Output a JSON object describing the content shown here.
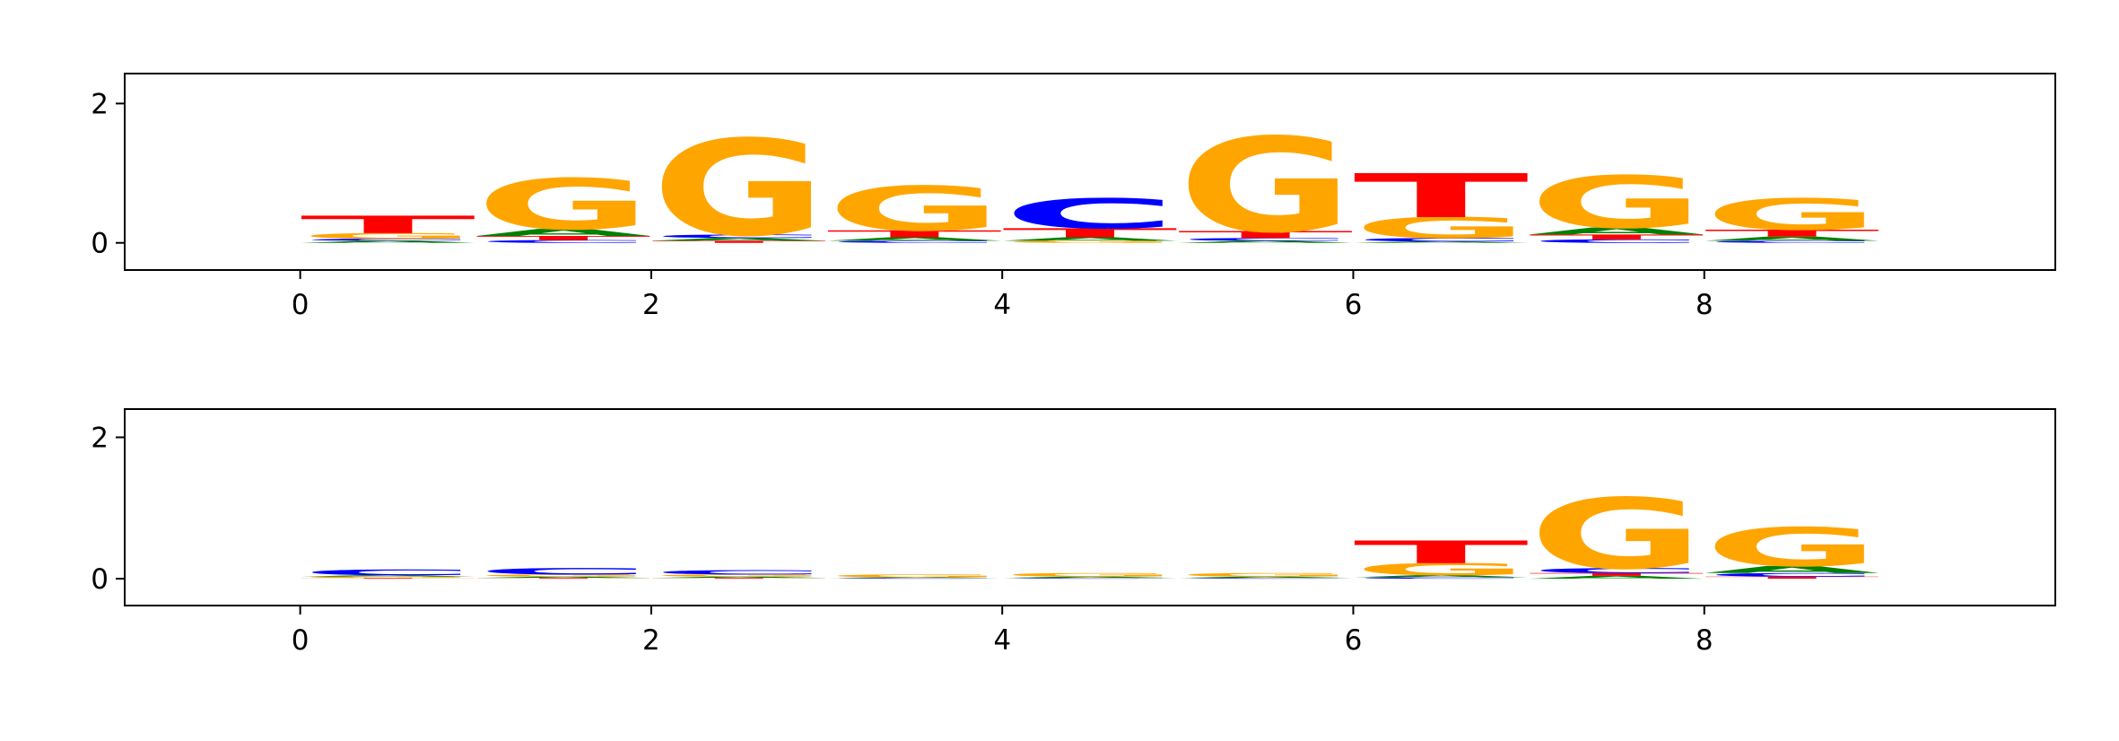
{
  "chart_data": [
    {
      "type": "logo",
      "xlim": [
        -1,
        10
      ],
      "ylim": [
        -0.39,
        2.43
      ],
      "xticks": [
        0,
        2,
        4,
        6,
        8
      ],
      "yticks": [
        0,
        2
      ],
      "colors": {
        "A": "#008000",
        "C": "#0000ff",
        "G": "#ffa500",
        "T": "#ff0000"
      },
      "stacks": [
        {
          "letters": [
            "A",
            "C",
            "G",
            "T"
          ],
          "heights": [
            0.03,
            0.03,
            0.08,
            0.25
          ]
        },
        {
          "letters": [
            "C",
            "T",
            "A",
            "G"
          ],
          "heights": [
            0.04,
            0.06,
            0.1,
            0.73
          ]
        },
        {
          "letters": [
            "T",
            "A",
            "C",
            "G"
          ],
          "heights": [
            0.03,
            0.04,
            0.05,
            1.38
          ]
        },
        {
          "letters": [
            "C",
            "A",
            "T",
            "G"
          ],
          "heights": [
            0.03,
            0.05,
            0.1,
            0.64
          ]
        },
        {
          "letters": [
            "G",
            "A",
            "T",
            "C"
          ],
          "heights": [
            0.03,
            0.05,
            0.13,
            0.43
          ]
        },
        {
          "letters": [
            "A",
            "C",
            "T",
            "G"
          ],
          "heights": [
            0.03,
            0.04,
            0.1,
            1.36
          ]
        },
        {
          "letters": [
            "A",
            "C",
            "G",
            "T"
          ],
          "heights": [
            0.02,
            0.05,
            0.3,
            0.63
          ]
        },
        {
          "letters": [
            "C",
            "T",
            "A",
            "G"
          ],
          "heights": [
            0.05,
            0.07,
            0.1,
            0.75
          ]
        },
        {
          "letters": [
            "C",
            "A",
            "T",
            "G"
          ],
          "heights": [
            0.03,
            0.06,
            0.1,
            0.45
          ]
        }
      ]
    },
    {
      "type": "logo",
      "xlim": [
        -1,
        10
      ],
      "ylim": [
        -0.38,
        2.4
      ],
      "xticks": [
        0,
        2,
        4,
        6,
        8
      ],
      "yticks": [
        0,
        2
      ],
      "colors": {
        "A": "#008000",
        "C": "#0000ff",
        "G": "#ffa500",
        "T": "#ff0000"
      },
      "stacks": [
        {
          "letters": [
            "T",
            "G",
            "A",
            "C"
          ],
          "heights": [
            0.01,
            0.02,
            0.02,
            0.08
          ]
        },
        {
          "letters": [
            "T",
            "A",
            "G",
            "C"
          ],
          "heights": [
            0.01,
            0.02,
            0.03,
            0.09
          ]
        },
        {
          "letters": [
            "T",
            "A",
            "G",
            "C"
          ],
          "heights": [
            0.01,
            0.02,
            0.03,
            0.06
          ]
        },
        {
          "letters": [
            "C",
            "A",
            "G"
          ],
          "heights": [
            0.01,
            0.01,
            0.04
          ]
        },
        {
          "letters": [
            "C",
            "A",
            "G"
          ],
          "heights": [
            0.01,
            0.02,
            0.05
          ]
        },
        {
          "letters": [
            "C",
            "A",
            "G"
          ],
          "heights": [
            0.01,
            0.02,
            0.05
          ]
        },
        {
          "letters": [
            "C",
            "A",
            "G",
            "T"
          ],
          "heights": [
            0.02,
            0.03,
            0.17,
            0.32
          ]
        },
        {
          "letters": [
            "A",
            "T",
            "C",
            "G"
          ],
          "heights": [
            0.04,
            0.04,
            0.07,
            1.0
          ]
        },
        {
          "letters": [
            "T",
            "C",
            "A",
            "G"
          ],
          "heights": [
            0.03,
            0.05,
            0.1,
            0.55
          ]
        }
      ]
    }
  ]
}
